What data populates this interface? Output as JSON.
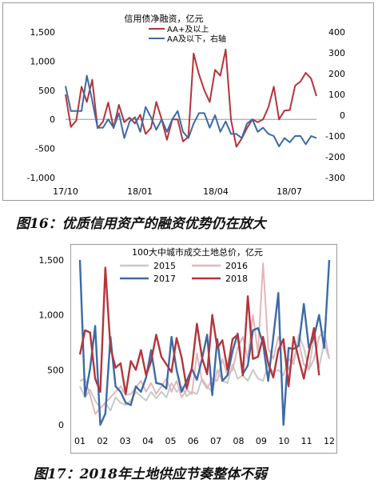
{
  "captions": {
    "fig16": "图16：优质信用资产的融资优势仍在放大",
    "fig17": "图17：2018年土地供应节奏整体不弱"
  },
  "colors": {
    "red": "#b5343a",
    "blue": "#3c6aa7",
    "pink": "#e2b6bc",
    "grey": "#c8c8c8"
  },
  "chart_data": [
    {
      "type": "line",
      "title": "信用债净融资，亿元",
      "x_ticks": [
        "17/10",
        "18/01",
        "18/04",
        "18/07"
      ],
      "y_left": {
        "ticks": [
          "-1,000",
          "-500",
          "0",
          "500",
          "1,000",
          "1,500"
        ],
        "ylim": [
          -1000,
          1500
        ]
      },
      "y_right": {
        "ticks": [
          "-300",
          "-200",
          "-100",
          "0",
          "100",
          "200",
          "300",
          "400"
        ],
        "ylim": [
          -300,
          400
        ]
      },
      "legend_placement": "top-center",
      "series": [
        {
          "name": "AA+及以上",
          "axis": "left",
          "color": "#b5343a",
          "values": [
            430,
            -130,
            -20,
            560,
            300,
            680,
            -150,
            -40,
            290,
            -150,
            250,
            -50,
            30,
            -70,
            80,
            -250,
            -150,
            300,
            0,
            -350,
            0,
            0,
            -380,
            -300,
            1130,
            770,
            500,
            300,
            850,
            750,
            1200,
            -10,
            -470,
            -330,
            -150,
            0,
            -50,
            0,
            210,
            560,
            0,
            150,
            160,
            580,
            650,
            800,
            700,
            400
          ]
        },
        {
          "name": "AA及以下，右轴",
          "axis": "right",
          "color": "#3c6aa7",
          "values": [
            140,
            20,
            20,
            20,
            190,
            70,
            -60,
            -60,
            -20,
            -60,
            10,
            -110,
            -30,
            -10,
            -80,
            40,
            -10,
            -70,
            -20,
            -80,
            -20,
            20,
            -80,
            -110,
            -40,
            10,
            10,
            -60,
            0,
            -80,
            -30,
            -90,
            -90,
            -110,
            -40,
            -20,
            -80,
            -60,
            -90,
            -100,
            -150,
            -110,
            -130,
            -100,
            -100,
            -140,
            -100,
            -110
          ]
        }
      ]
    },
    {
      "type": "line",
      "title": "100大中城市成交土地总价，亿元",
      "x_ticks": [
        "01",
        "02",
        "03",
        "04",
        "05",
        "06",
        "07",
        "08",
        "09",
        "10",
        "11",
        "12"
      ],
      "y_ticks": [
        "0",
        "500",
        "1,000",
        "1,500"
      ],
      "ylim": [
        0,
        1500
      ],
      "legend_placement": "top-center",
      "series": [
        {
          "name": "2015",
          "color": "#c8c8c8",
          "values": [
            350,
            250,
            320,
            220,
            150,
            200,
            130,
            250,
            200,
            180,
            220,
            300,
            260,
            220,
            300,
            240,
            300,
            250,
            380,
            300,
            350,
            260,
            300,
            280,
            420,
            350,
            300,
            500,
            400,
            380,
            550,
            420,
            450,
            400,
            500,
            420,
            400,
            550,
            480,
            500,
            450,
            600,
            550,
            820,
            700,
            500,
            800,
            520,
            750,
            600
          ]
        },
        {
          "name": "2016",
          "color": "#e2b6bc",
          "values": [
            400,
            420,
            270,
            100,
            150,
            200,
            250,
            300,
            350,
            270,
            280,
            340,
            400,
            300,
            380,
            280,
            350,
            420,
            300,
            400,
            250,
            320,
            280,
            650,
            400,
            330,
            420,
            400,
            600,
            450,
            500,
            700,
            800,
            600,
            1000,
            650,
            1470,
            700,
            600,
            800,
            700,
            500,
            600,
            750,
            550,
            500,
            600,
            800,
            850,
            600
          ]
        },
        {
          "name": "2017",
          "color": "#3c6aa7",
          "values": [
            1500,
            260,
            510,
            900,
            0,
            100,
            800,
            350,
            300,
            200,
            180,
            350,
            300,
            430,
            680,
            380,
            370,
            330,
            800,
            500,
            300,
            400,
            510,
            410,
            600,
            820,
            270,
            780,
            400,
            450,
            670,
            830,
            460,
            540,
            860,
            880,
            740,
            400,
            800,
            1200,
            0,
            700,
            690,
            720,
            1100,
            700,
            800,
            1000,
            700,
            1500
          ]
        },
        {
          "name": "2018",
          "color": "#b5343a",
          "values": [
            640,
            860,
            840,
            420,
            300,
            1430,
            700,
            520,
            560,
            280,
            580,
            500,
            680,
            450,
            580,
            820,
            620,
            550,
            480,
            790,
            610,
            330,
            520,
            920,
            610,
            460,
            1000,
            700,
            770,
            500,
            780,
            820,
            450,
            1170,
            600,
            620,
            800,
            560,
            430,
            680,
            780,
            350,
            800,
            600,
            420,
            660,
            880,
            450
          ]
        }
      ]
    }
  ]
}
